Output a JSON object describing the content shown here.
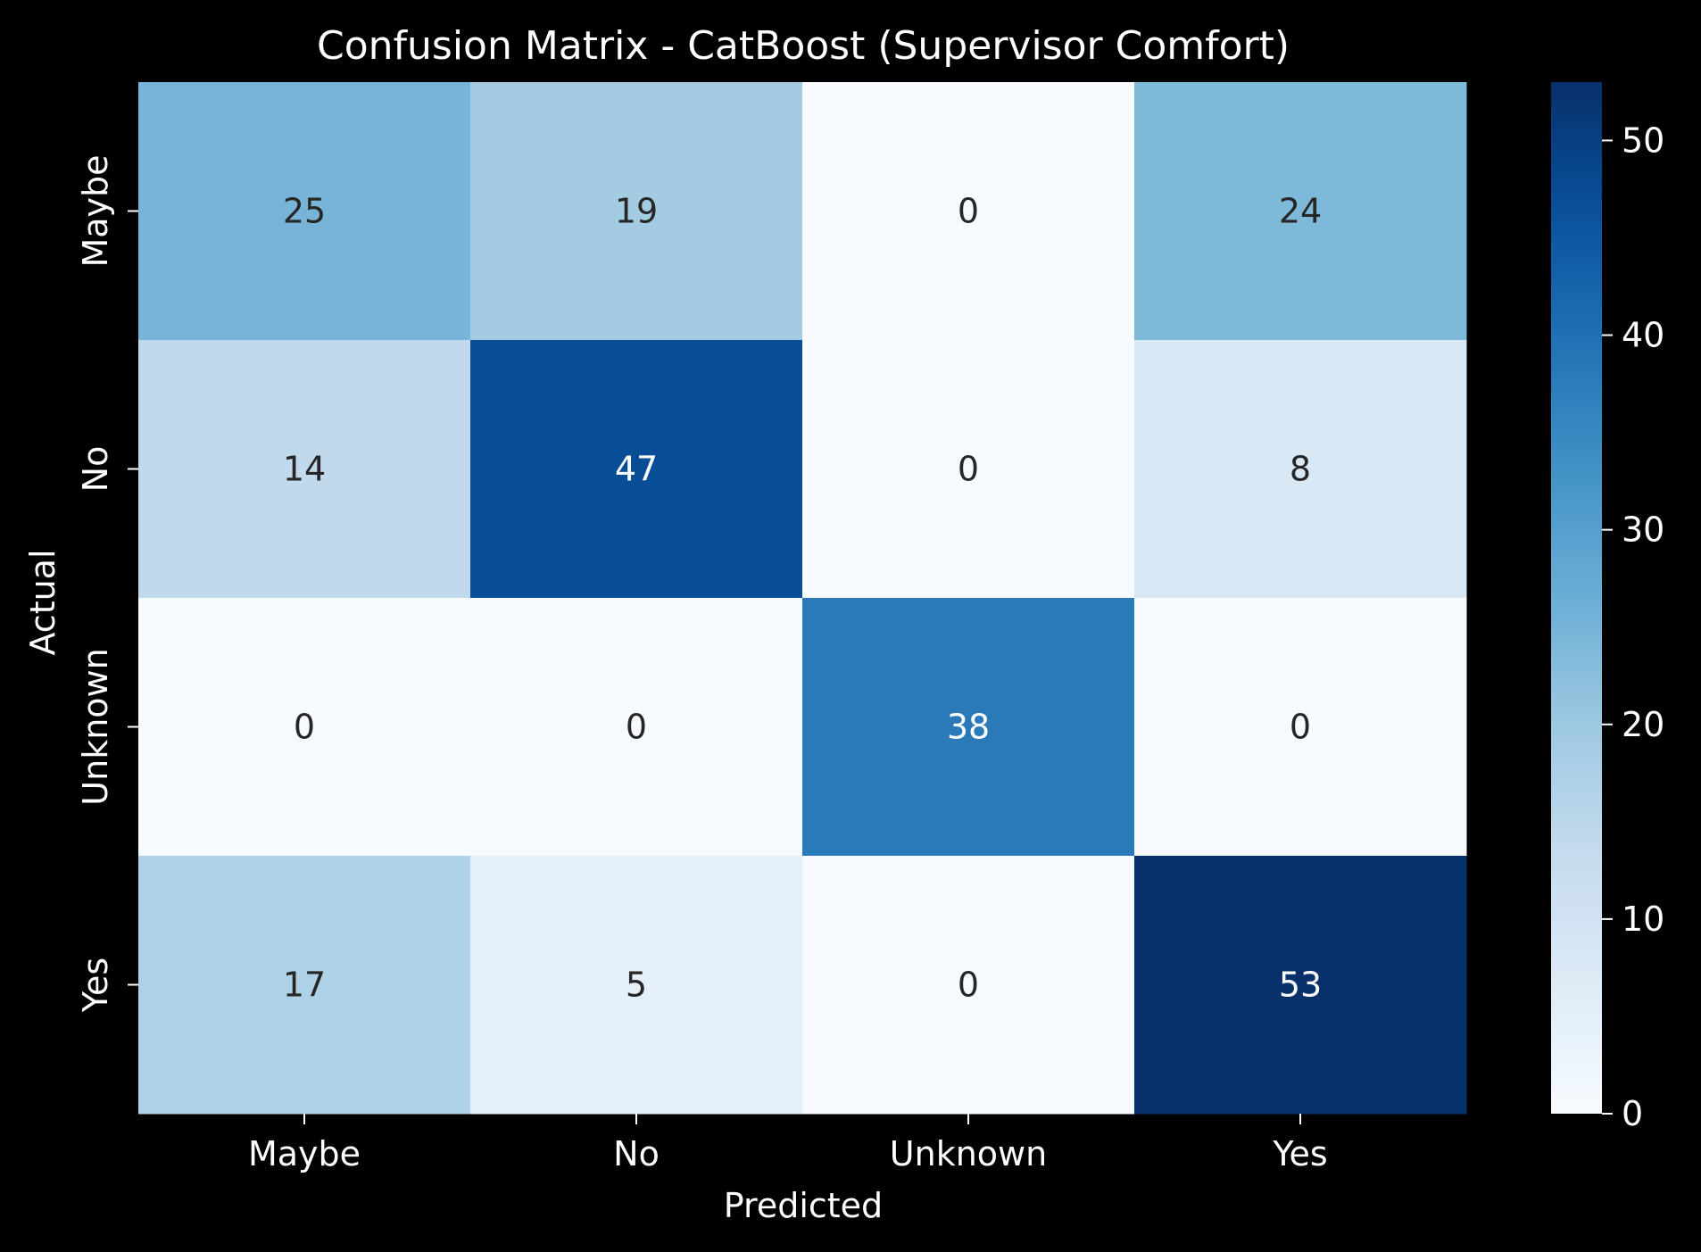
{
  "chart_data": {
    "type": "heatmap",
    "title": "Confusion Matrix - CatBoost (Supervisor Comfort)",
    "xlabel": "Predicted",
    "ylabel": "Actual",
    "x_categories": [
      "Maybe",
      "No",
      "Unknown",
      "Yes"
    ],
    "y_categories": [
      "Maybe",
      "No",
      "Unknown",
      "Yes"
    ],
    "values": [
      [
        25,
        19,
        0,
        24
      ],
      [
        14,
        47,
        0,
        8
      ],
      [
        0,
        0,
        38,
        0
      ],
      [
        17,
        5,
        0,
        53
      ]
    ],
    "colorbar": {
      "min": 0,
      "max": 53,
      "ticks": [
        0,
        10,
        20,
        30,
        40,
        50
      ]
    },
    "colormap": "Blues",
    "colors": {
      "background": "#000000",
      "foreground": "#ffffff",
      "annotation_dark": "#262626",
      "annotation_light": "#ffffff"
    }
  }
}
